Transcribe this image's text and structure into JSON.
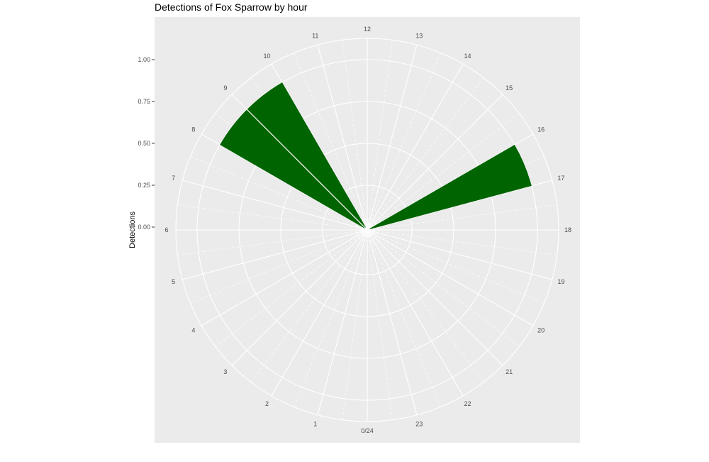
{
  "chart_data": {
    "type": "bar",
    "coordinate_system": "polar",
    "title": "Detections of Fox Sparrow by hour",
    "xlabel": "",
    "ylabel": "Detections",
    "y_ticks": [
      "0.00",
      "0.25",
      "0.50",
      "0.75",
      "1.00"
    ],
    "ylim": [
      0,
      1.0
    ],
    "hour_labels": [
      "0/24",
      "1",
      "2",
      "3",
      "4",
      "5",
      "6",
      "7",
      "8",
      "9",
      "10",
      "11",
      "12",
      "13",
      "14",
      "15",
      "16",
      "17",
      "18",
      "19",
      "20",
      "21",
      "22",
      "23"
    ],
    "categories": [
      8,
      9,
      16
    ],
    "values": [
      1,
      1,
      1
    ],
    "series": [
      {
        "hour": 8,
        "value": 1,
        "start_angle_deg": 120,
        "end_angle_deg": 135
      },
      {
        "hour": 9,
        "value": 1,
        "start_angle_deg": 135,
        "end_angle_deg": 150
      },
      {
        "hour": 16,
        "value": 1,
        "start_angle_deg": 240,
        "end_angle_deg": 255
      }
    ],
    "bar_color": "#006400",
    "panel_background": "#ebebeb",
    "grid_color": "#ffffff",
    "grid": true,
    "legend": "none"
  }
}
